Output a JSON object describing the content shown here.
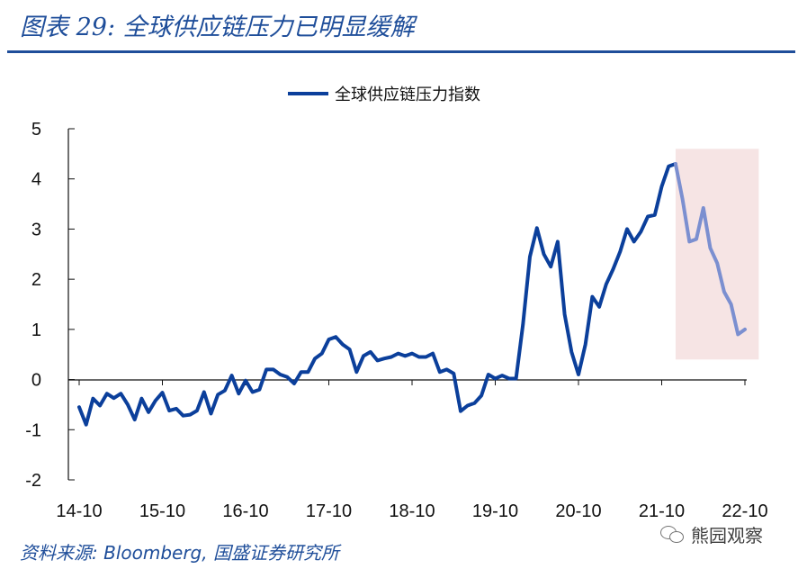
{
  "header": {
    "title": "图表 29:  全球供应链压力已明显缓解"
  },
  "source": {
    "text": "资料来源:  Bloomberg,  国盛证券研究所"
  },
  "watermark": {
    "icon": "wechat-icon",
    "text": "熊园观察"
  },
  "colors": {
    "title": "#1f4e9a",
    "line": "#0b3f9b",
    "line_highlight": "#7b8fd0",
    "highlight_box": "#f6e4e4"
  },
  "chart_data": {
    "type": "line",
    "title": "",
    "xlabel": "",
    "ylabel": "",
    "ylim": [
      -2,
      5
    ],
    "y_ticks": [
      "5",
      "4",
      "3",
      "2",
      "1",
      "0",
      "-1",
      "-2"
    ],
    "x_range": [
      0,
      96
    ],
    "x_ticks": [
      {
        "label": "14-10",
        "index": 0
      },
      {
        "label": "15-10",
        "index": 12
      },
      {
        "label": "16-10",
        "index": 24
      },
      {
        "label": "17-10",
        "index": 36
      },
      {
        "label": "18-10",
        "index": 48
      },
      {
        "label": "19-10",
        "index": 60
      },
      {
        "label": "20-10",
        "index": 72
      },
      {
        "label": "21-10",
        "index": 84
      },
      {
        "label": "22-10",
        "index": 96
      }
    ],
    "legend": {
      "position": "top",
      "entries": [
        "全球供应链压力指数"
      ]
    },
    "grid": false,
    "highlight": {
      "x_from": 86,
      "x_to": 98,
      "y_from": 0.4,
      "y_to": 4.6
    },
    "series": [
      {
        "name": "全球供应链压力指数",
        "x": [
          0,
          1,
          2,
          3,
          4,
          5,
          6,
          7,
          8,
          9,
          10,
          11,
          12,
          13,
          14,
          15,
          16,
          17,
          18,
          19,
          20,
          21,
          22,
          23,
          24,
          25,
          26,
          27,
          28,
          29,
          30,
          31,
          32,
          33,
          34,
          35,
          36,
          37,
          38,
          39,
          40,
          41,
          42,
          43,
          44,
          45,
          46,
          47,
          48,
          49,
          50,
          51,
          52,
          53,
          54,
          55,
          56,
          57,
          58,
          59,
          60,
          61,
          62,
          63,
          64,
          65,
          66,
          67,
          68,
          69,
          70,
          71,
          72,
          73,
          74,
          75,
          76,
          77,
          78,
          79,
          80,
          81,
          82,
          83,
          84,
          85,
          86,
          87,
          88,
          89,
          90,
          91,
          92,
          93,
          94,
          95,
          96
        ],
        "values": [
          -0.55,
          -0.9,
          -0.38,
          -0.52,
          -0.28,
          -0.37,
          -0.28,
          -0.5,
          -0.8,
          -0.38,
          -0.65,
          -0.42,
          -0.26,
          -0.62,
          -0.58,
          -0.72,
          -0.7,
          -0.62,
          -0.25,
          -0.68,
          -0.3,
          -0.22,
          0.08,
          -0.28,
          -0.02,
          -0.25,
          -0.2,
          0.2,
          0.2,
          0.1,
          0.05,
          -0.08,
          0.15,
          0.15,
          0.42,
          0.52,
          0.8,
          0.85,
          0.7,
          0.6,
          0.15,
          0.47,
          0.55,
          0.38,
          0.42,
          0.45,
          0.52,
          0.47,
          0.52,
          0.45,
          0.45,
          0.52,
          0.15,
          0.2,
          0.12,
          -0.63,
          -0.52,
          -0.47,
          -0.32,
          0.1,
          0.02,
          0.08,
          0.02,
          0.02,
          1.1,
          2.45,
          3.02,
          2.5,
          2.25,
          2.75,
          1.3,
          0.55,
          0.1,
          0.7,
          1.65,
          1.45,
          1.9,
          2.2,
          2.55,
          3.0,
          2.75,
          2.95,
          3.25,
          3.28,
          3.85,
          4.25,
          4.3,
          3.6,
          2.75,
          2.8,
          3.42,
          2.62,
          2.32,
          1.75,
          1.5,
          0.9,
          1.0
        ]
      }
    ]
  }
}
